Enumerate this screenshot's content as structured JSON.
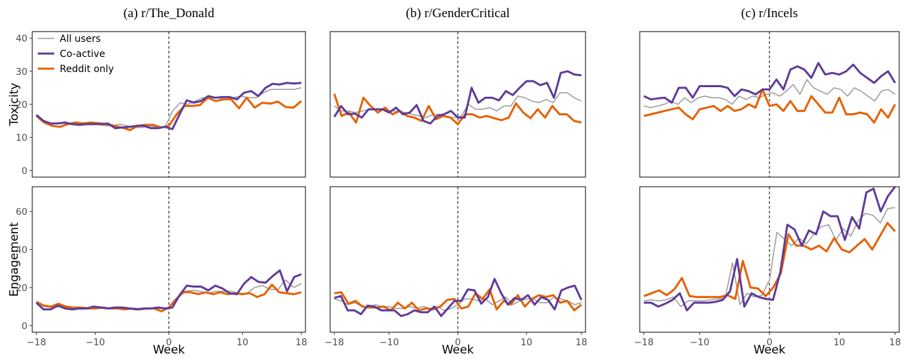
{
  "chart_data": {
    "type": "line",
    "x_label": "Week",
    "x_ticks": [
      -18,
      -10,
      0,
      10,
      18
    ],
    "x_range": [
      -18,
      18
    ],
    "vline_x": 0,
    "grid": false,
    "legend_placement": "top-left of panel (a) Toxicity",
    "series_styles": [
      {
        "name": "All users",
        "color": "#999999"
      },
      {
        "name": "Co-active",
        "color": "#5e3c99"
      },
      {
        "name": "Reddit only",
        "color": "#e66101"
      }
    ],
    "rows": [
      {
        "ylabel": "Toxicity",
        "ylim": [
          -2,
          42
        ],
        "yticks": [
          0,
          10,
          20,
          30,
          40
        ]
      },
      {
        "ylabel": "Engagement",
        "ylim": [
          -3.5,
          73
        ],
        "yticks": [
          0,
          20,
          40,
          60
        ]
      }
    ],
    "panels": [
      {
        "title": "(a) r/The_Donald",
        "row": 0,
        "col": 0,
        "show_yticks": true,
        "show_xticks": false,
        "series": [
          {
            "name": "All users",
            "values": [
              16.5,
              15,
              14,
              14.5,
              14,
              14,
              14,
              14.5,
              14,
              13.5,
              13.5,
              14,
              13.5,
              13,
              13,
              13.5,
              13,
              13,
              18,
              20.5,
              20,
              21,
              22,
              22,
              22,
              21.5,
              22,
              22.5,
              22,
              22,
              23.5,
              24.5,
              24.5,
              24.5,
              24.5,
              25
            ]
          },
          {
            "name": "Co-active",
            "values": [
              16.8,
              15,
              14.2,
              14.2,
              14.5,
              14,
              13.8,
              14,
              14,
              14,
              14.2,
              12.8,
              13,
              13.2,
              13.5,
              13.5,
              12.8,
              12.8,
              13.2,
              12.5,
              17,
              21.2,
              20.5,
              21,
              22.5,
              22,
              22.2,
              22.2,
              21.5,
              23.5,
              24,
              22.5,
              25,
              26.2,
              26,
              26.5,
              26.3,
              26.5
            ]
          },
          {
            "name": "Reddit only",
            "values": [
              16.5,
              14.5,
              13.5,
              13.2,
              14,
              14.5,
              14.2,
              14.5,
              14.3,
              14,
              13.5,
              13,
              12.2,
              13.5,
              13.8,
              13.8,
              13,
              13.5,
              17,
              19.5,
              19.5,
              19.8,
              22,
              21,
              21.5,
              21.5,
              18.8,
              22,
              19,
              20.5,
              20.2,
              20.8,
              19.2,
              19,
              21
            ]
          }
        ]
      },
      {
        "title": "(b) r/GenderCritical",
        "row": 0,
        "col": 1,
        "show_yticks": false,
        "show_xticks": false,
        "series": [
          {
            "name": "All users",
            "values": [
              19.5,
              18,
              18,
              17.5,
              18,
              18.5,
              18.5,
              18.5,
              18,
              18,
              17.5,
              17,
              16.5,
              16,
              17,
              17,
              16,
              16,
              16.5,
              20,
              18.5,
              18.5,
              19,
              18,
              19.5,
              19.5,
              22.5,
              22,
              21,
              20.5,
              21.5,
              20.5,
              23.5,
              23.5,
              22,
              21
            ]
          },
          {
            "name": "Co-active",
            "values": [
              16.2,
              19.5,
              17,
              17.2,
              16,
              18.5,
              18.5,
              18.5,
              17.5,
              19,
              17,
              17.5,
              19.8,
              15,
              14.2,
              16.5,
              17,
              18,
              16,
              16,
              25,
              20.5,
              22,
              22,
              21.2,
              24,
              22.8,
              25,
              27,
              27,
              25.8,
              26.5,
              22,
              29.5,
              30,
              29,
              28.8
            ]
          },
          {
            "name": "Reddit only",
            "values": [
              23.2,
              16.5,
              17.5,
              14.5,
              22,
              19.5,
              17.5,
              19,
              17,
              18,
              16.5,
              16,
              15,
              19.5,
              15.5,
              16.5,
              16,
              14,
              17,
              17,
              16,
              16.5,
              15.8,
              15.2,
              16,
              20.3,
              17.5,
              15.8,
              18.5,
              16,
              19.5,
              17,
              17,
              15,
              14.5
            ]
          }
        ]
      },
      {
        "title": "(c) r/Incels",
        "row": 0,
        "col": 2,
        "show_yticks": false,
        "show_xticks": false,
        "series": [
          {
            "name": "All users",
            "values": [
              19.5,
              19,
              19.5,
              20,
              21,
              20,
              22,
              20.5,
              22,
              22.5,
              22,
              22,
              21.5,
              20,
              22.5,
              21.5,
              22.5,
              22,
              23,
              23.5,
              22.5,
              24,
              26,
              23,
              27.5,
              25,
              24,
              23,
              25,
              24.5,
              22.5,
              25,
              24,
              22.5,
              21,
              24,
              24.5,
              23
            ]
          },
          {
            "name": "Co-active",
            "values": [
              22.5,
              21.5,
              21.8,
              22,
              20.5,
              25,
              25,
              22,
              25.5,
              25.5,
              25.5,
              25.5,
              25,
              22.5,
              24.5,
              24,
              23,
              24.5,
              24.5,
              27.5,
              24.5,
              30.5,
              31.5,
              30.5,
              28,
              32.5,
              29,
              29.5,
              29,
              30,
              32,
              29.5,
              28,
              26.5,
              28.5,
              30,
              26.5
            ]
          },
          {
            "name": "Reddit only",
            "values": [
              16.5,
              17,
              17.5,
              18,
              18.5,
              19,
              17,
              15.5,
              18.5,
              19,
              19.5,
              18,
              19.5,
              18,
              18.5,
              20,
              19,
              24.5,
              19.5,
              20,
              18,
              21,
              18,
              18,
              22.5,
              20,
              17.5,
              17.5,
              22,
              17,
              17,
              17.5,
              17,
              14.5,
              18.5,
              16,
              20
            ]
          }
        ]
      },
      {
        "title": "",
        "row": 1,
        "col": 0,
        "show_yticks": true,
        "show_xticks": true,
        "series": [
          {
            "name": "All users",
            "values": [
              12,
              10,
              9.5,
              10,
              9.5,
              9.5,
              9.5,
              9.5,
              9,
              9,
              9.5,
              9,
              9,
              9,
              9,
              9,
              9,
              9,
              14,
              18,
              18.5,
              18,
              17,
              18,
              18,
              18,
              17,
              17,
              20,
              21,
              19,
              19,
              24,
              20,
              22
            ]
          },
          {
            "name": "Co-active",
            "values": [
              12,
              8.5,
              8.5,
              10.5,
              9,
              8.5,
              9,
              9,
              10,
              9.5,
              9,
              9.5,
              9.5,
              9,
              8.5,
              9,
              9,
              9.5,
              9,
              9.5,
              16,
              21,
              20.5,
              20.5,
              18.5,
              21,
              19.5,
              17,
              16.5,
              22,
              25.5,
              23,
              22.5,
              26,
              29,
              18,
              25.5,
              27
            ]
          },
          {
            "name": "Reddit only",
            "values": [
              12.5,
              10.5,
              10,
              11.5,
              10,
              9.5,
              9.5,
              9,
              9,
              9.5,
              9,
              9,
              8.5,
              9,
              8.5,
              9,
              9,
              7.5,
              9.5,
              14,
              17.5,
              17.5,
              16.5,
              17.5,
              16.5,
              17.5,
              16.5,
              17,
              16.5,
              17,
              15,
              16.5,
              21.5,
              17.5,
              17,
              16.5,
              17.5
            ]
          }
        ]
      },
      {
        "title": "",
        "row": 1,
        "col": 1,
        "show_yticks": false,
        "show_xticks": true,
        "series": [
          {
            "name": "All users",
            "values": [
              14,
              13,
              11,
              12,
              10,
              10,
              11,
              10,
              10,
              9,
              9,
              10,
              9,
              10,
              9,
              10,
              8,
              9,
              11,
              14,
              14,
              13,
              14,
              11,
              13,
              15,
              11,
              13,
              14,
              14,
              12,
              12,
              15,
              14,
              13,
              11,
              12
            ]
          },
          {
            "name": "Co-active",
            "values": [
              14.5,
              15.5,
              8,
              8,
              6,
              10.5,
              10,
              8,
              8,
              8,
              5,
              6,
              8,
              7,
              7,
              10,
              5,
              9,
              13,
              13,
              19,
              18.5,
              11.5,
              15,
              24.5,
              17,
              11,
              14.5,
              13.5,
              16,
              11,
              15,
              13.5,
              8.5,
              18.5,
              20,
              21,
              13.5
            ]
          },
          {
            "name": "Reddit only",
            "values": [
              17,
              17.5,
              11.5,
              13,
              10,
              9.5,
              9.5,
              10,
              8,
              12,
              9,
              12,
              8,
              9,
              8.5,
              10,
              13.5,
              14,
              9,
              10,
              17,
              14,
              19,
              8.5,
              13,
              11,
              16,
              10,
              14,
              16,
              15,
              16,
              12,
              13,
              8,
              11
            ]
          }
        ]
      },
      {
        "title": "",
        "row": 1,
        "col": 2,
        "show_yticks": false,
        "show_xticks": true,
        "series": [
          {
            "name": "All users",
            "values": [
              13,
              13.5,
              13,
              13.5,
              15,
              10,
              13,
              13,
              13,
              13.5,
              14,
              14.5,
              33,
              11,
              17,
              15,
              16,
              24,
              49,
              45.5,
              42,
              46,
              43,
              48,
              52,
              53,
              45,
              51,
              47,
              55,
              59,
              58,
              54,
              61.5,
              62
            ]
          },
          {
            "name": "Co-active",
            "values": [
              12,
              12,
              10,
              11.5,
              13.5,
              17,
              8,
              12,
              12,
              12,
              12.5,
              13.5,
              18,
              35,
              10,
              17,
              15,
              14,
              13.5,
              28,
              53,
              50.5,
              42,
              50,
              48,
              60,
              57.5,
              57.5,
              45,
              57,
              51,
              70,
              72,
              60,
              68,
              73
            ]
          },
          {
            "name": "Reddit only",
            "values": [
              15.5,
              17,
              18.5,
              16,
              19,
              25,
              15.5,
              15,
              15,
              15,
              15,
              16,
              14,
              34,
              20,
              19.5,
              15.5,
              20,
              27.5,
              48,
              42,
              42,
              40,
              42,
              39,
              46,
              40,
              38.5,
              42,
              45.5,
              40,
              47,
              54,
              49.5
            ]
          }
        ]
      }
    ]
  }
}
